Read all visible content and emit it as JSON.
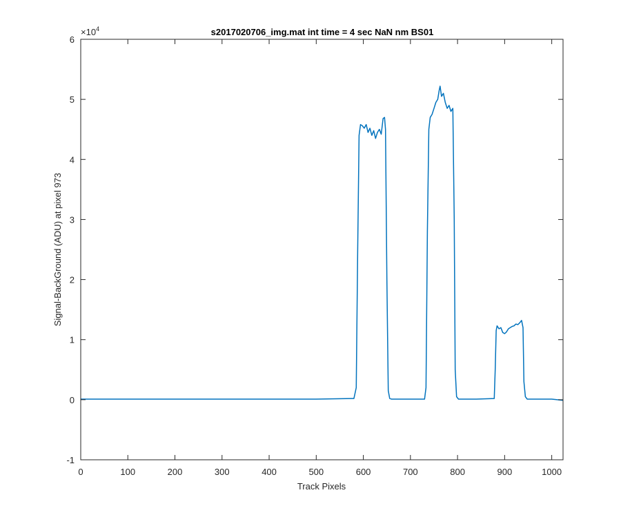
{
  "chart_data": {
    "type": "line",
    "title": "s2017020706_img.mat int time = 4 sec  NaN nm BS01",
    "xlabel": "Track Pixels",
    "ylabel": "Signal-BackGround (ADU) at pixel 973",
    "xlim": [
      0,
      1024
    ],
    "ylim": [
      -10000,
      60000
    ],
    "y_exponent_label": "×10",
    "y_exponent_power": "4",
    "x_ticks": [
      0,
      100,
      200,
      300,
      400,
      500,
      600,
      700,
      800,
      900,
      1000
    ],
    "y_ticks": [
      -10000,
      0,
      10000,
      20000,
      30000,
      40000,
      50000,
      60000
    ],
    "y_tick_labels": [
      "-1",
      "0",
      "1",
      "2",
      "3",
      "4",
      "5",
      "6"
    ],
    "grid": false,
    "line_color": "#0072BD",
    "series": [
      {
        "x": [
          0,
          100,
          200,
          300,
          400,
          500,
          580,
          585,
          588,
          591,
          594,
          598,
          602,
          606,
          610,
          614,
          618,
          622,
          626,
          630,
          634,
          638,
          642,
          645,
          647,
          650,
          653,
          656,
          660,
          700,
          730,
          733,
          736,
          739,
          742,
          746,
          750,
          754,
          758,
          761,
          763,
          766,
          770,
          774,
          778,
          782,
          786,
          790,
          793,
          795,
          798,
          802,
          840,
          878,
          880,
          882,
          884,
          888,
          892,
          896,
          900,
          904,
          908,
          912,
          916,
          920,
          924,
          928,
          932,
          936,
          939,
          941,
          944,
          948,
          1000,
          1024
        ],
        "y": [
          100,
          100,
          100,
          100,
          100,
          100,
          200,
          2000,
          25000,
          44000,
          45800,
          45600,
          45200,
          45800,
          44500,
          45200,
          44000,
          44800,
          43500,
          44500,
          45000,
          44200,
          46800,
          47000,
          45000,
          20000,
          1500,
          200,
          100,
          100,
          100,
          2000,
          28000,
          45000,
          47000,
          47500,
          48500,
          49500,
          50000,
          51500,
          52200,
          50500,
          51000,
          49500,
          48500,
          49000,
          48000,
          48500,
          30000,
          5000,
          500,
          100,
          100,
          200,
          5000,
          11500,
          12300,
          11800,
          12000,
          11200,
          11000,
          11300,
          11800,
          12000,
          12200,
          12300,
          12600,
          12500,
          12800,
          13200,
          12000,
          3000,
          500,
          100,
          100,
          -100
        ]
      }
    ]
  }
}
